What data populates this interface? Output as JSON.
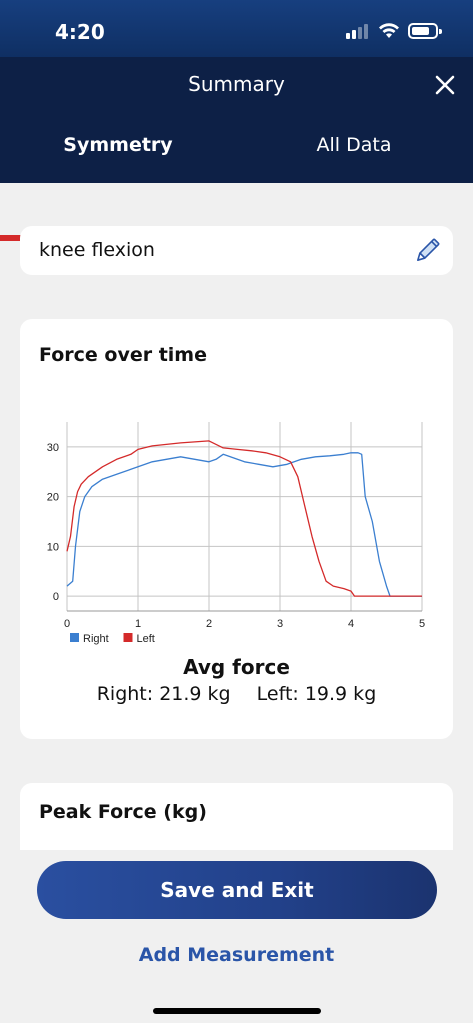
{
  "status_bar": {
    "time": "4:20"
  },
  "nav": {
    "title": "Summary"
  },
  "tabs": [
    {
      "label": "Symmetry",
      "active": true
    },
    {
      "label": "All Data",
      "active": false
    }
  ],
  "exercise": {
    "name": "knee flexion"
  },
  "force_card": {
    "title": "Force over time",
    "avg_title": "Avg force",
    "avg_right": "Right: 21.9 kg",
    "avg_left": "Left: 19.9 kg"
  },
  "peak_card": {
    "title": "Peak Force (kg)"
  },
  "actions": {
    "save_label": "Save and Exit",
    "add_label": "Add Measurement"
  },
  "colors": {
    "right": "#3b7fd0",
    "left": "#d42a2a",
    "accent": "#d42a2a",
    "nav_bg": "#0d2046"
  },
  "chart_data": {
    "type": "line",
    "title": "Force over time",
    "xlabel": "",
    "ylabel": "",
    "xlim": [
      0,
      5
    ],
    "ylim": [
      -3,
      35
    ],
    "x_ticks": [
      0,
      1,
      2,
      3,
      4,
      5
    ],
    "y_ticks": [
      0,
      10,
      20,
      30
    ],
    "grid": true,
    "legend": "bottom-left",
    "series": [
      {
        "name": "Right",
        "color": "#3b7fd0",
        "x": [
          0,
          0.08,
          0.12,
          0.18,
          0.25,
          0.35,
          0.5,
          0.7,
          0.9,
          1.0,
          1.2,
          1.4,
          1.6,
          1.8,
          2.0,
          2.1,
          2.2,
          2.3,
          2.5,
          2.7,
          2.9,
          3.1,
          3.3,
          3.5,
          3.7,
          3.9,
          4.0,
          4.1,
          4.15,
          4.2,
          4.3,
          4.4,
          4.5,
          4.55,
          4.6,
          5.0
        ],
        "y": [
          2,
          3,
          10,
          17,
          20,
          22,
          23.5,
          24.5,
          25.5,
          26,
          27,
          27.5,
          28,
          27.5,
          27,
          27.5,
          28.5,
          28,
          27,
          26.5,
          26,
          26.5,
          27.5,
          28,
          28.2,
          28.5,
          28.8,
          28.8,
          28.5,
          20,
          15,
          7,
          2,
          0,
          0,
          0
        ]
      },
      {
        "name": "Left",
        "color": "#d42a2a",
        "x": [
          0,
          0.05,
          0.1,
          0.15,
          0.2,
          0.3,
          0.5,
          0.7,
          0.9,
          1.0,
          1.2,
          1.4,
          1.6,
          1.8,
          2.0,
          2.1,
          2.2,
          2.4,
          2.6,
          2.8,
          3.0,
          3.15,
          3.25,
          3.35,
          3.45,
          3.55,
          3.65,
          3.75,
          3.9,
          4.0,
          4.05,
          4.1,
          4.2,
          5.0
        ],
        "y": [
          9,
          12,
          18,
          21,
          22.5,
          24,
          26,
          27.5,
          28.5,
          29.5,
          30.2,
          30.5,
          30.8,
          31,
          31.2,
          30.5,
          29.8,
          29.5,
          29.2,
          28.8,
          28,
          27,
          24,
          18,
          12,
          7,
          3,
          2,
          1.5,
          1,
          0,
          0,
          0,
          0
        ]
      }
    ]
  }
}
